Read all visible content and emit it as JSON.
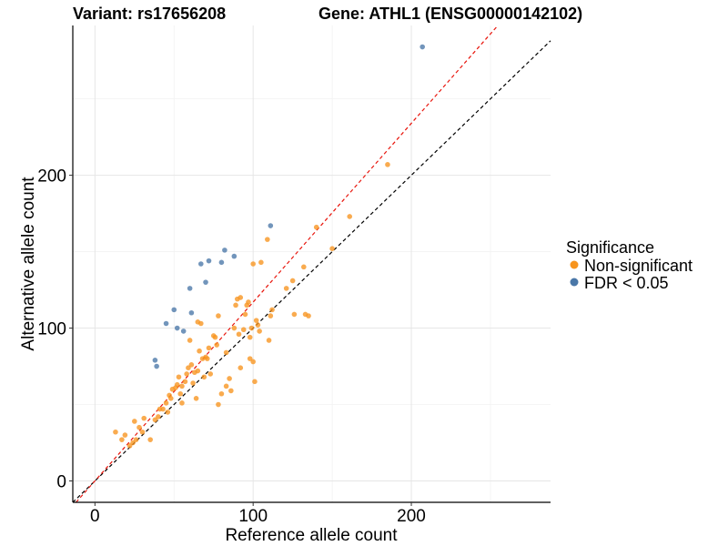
{
  "chart_data": {
    "type": "scatter",
    "title_left": "Variant: rs17656208",
    "title_right": "Gene: ATHL1 (ENSG00000142102)",
    "xlabel": "Reference allele count",
    "ylabel": "Alternative allele count",
    "xlim": [
      -14,
      288
    ],
    "ylim": [
      -14,
      298
    ],
    "x_ticks": [
      0,
      100,
      200
    ],
    "y_ticks": [
      0,
      100,
      200
    ],
    "grid": true,
    "legend": {
      "title": "Significance",
      "position": "right",
      "entries": [
        {
          "label": "Non-significant",
          "color": "#F7941D"
        },
        {
          "label": "FDR < 0.05",
          "color": "#4A77A8"
        }
      ]
    },
    "reference_lines": [
      {
        "name": "identity",
        "slope": 1.0,
        "intercept": 0,
        "color": "#000000",
        "dash": true
      },
      {
        "name": "fit",
        "slope": 1.17,
        "intercept": 0,
        "color": "#E8140B",
        "dash": true
      }
    ],
    "series": [
      {
        "name": "Non-significant",
        "color": "#F7941D",
        "points": [
          [
            13,
            32
          ],
          [
            17,
            27
          ],
          [
            19,
            30
          ],
          [
            22,
            23
          ],
          [
            24,
            25
          ],
          [
            25,
            39
          ],
          [
            26,
            27
          ],
          [
            28,
            35
          ],
          [
            30,
            32
          ],
          [
            31,
            41
          ],
          [
            35,
            27
          ],
          [
            38,
            40
          ],
          [
            40,
            42
          ],
          [
            41,
            47
          ],
          [
            43,
            47
          ],
          [
            45,
            51
          ],
          [
            46,
            45
          ],
          [
            47,
            56
          ],
          [
            48,
            54
          ],
          [
            49,
            60
          ],
          [
            51,
            61
          ],
          [
            52,
            63
          ],
          [
            53,
            68
          ],
          [
            54,
            57
          ],
          [
            55,
            51
          ],
          [
            55,
            62
          ],
          [
            57,
            65
          ],
          [
            58,
            70
          ],
          [
            59,
            74
          ],
          [
            60,
            92
          ],
          [
            61,
            76
          ],
          [
            62,
            64
          ],
          [
            63,
            71
          ],
          [
            64,
            54
          ],
          [
            65,
            104
          ],
          [
            65,
            72
          ],
          [
            66,
            85
          ],
          [
            67,
            103
          ],
          [
            68,
            80
          ],
          [
            69,
            68
          ],
          [
            70,
            81
          ],
          [
            71,
            80
          ],
          [
            72,
            87
          ],
          [
            73,
            70
          ],
          [
            75,
            95
          ],
          [
            76,
            94
          ],
          [
            77,
            89
          ],
          [
            78,
            108
          ],
          [
            78,
            50
          ],
          [
            80,
            57
          ],
          [
            83,
            84
          ],
          [
            83,
            62
          ],
          [
            85,
            67
          ],
          [
            86,
            59
          ],
          [
            88,
            100
          ],
          [
            89,
            115
          ],
          [
            90,
            119
          ],
          [
            91,
            96
          ],
          [
            92,
            120
          ],
          [
            92,
            74
          ],
          [
            94,
            99
          ],
          [
            95,
            109
          ],
          [
            96,
            115
          ],
          [
            97,
            117
          ],
          [
            98,
            80
          ],
          [
            98,
            94
          ],
          [
            99,
            100
          ],
          [
            100,
            142
          ],
          [
            100,
            78
          ],
          [
            101,
            65
          ],
          [
            102,
            105
          ],
          [
            103,
            102
          ],
          [
            104,
            98
          ],
          [
            105,
            143
          ],
          [
            109,
            158
          ],
          [
            110,
            92
          ],
          [
            111,
            108
          ],
          [
            112,
            112
          ],
          [
            121,
            126
          ],
          [
            125,
            131
          ],
          [
            126,
            109
          ],
          [
            132,
            140
          ],
          [
            133,
            109
          ],
          [
            135,
            108
          ],
          [
            140,
            166
          ],
          [
            150,
            152
          ],
          [
            161,
            173
          ],
          [
            185,
            207
          ]
        ]
      },
      {
        "name": "FDR < 0.05",
        "color": "#4A77A8",
        "points": [
          [
            38,
            79
          ],
          [
            39,
            75
          ],
          [
            45,
            103
          ],
          [
            50,
            112
          ],
          [
            52,
            100
          ],
          [
            56,
            98
          ],
          [
            60,
            126
          ],
          [
            61,
            110
          ],
          [
            67,
            142
          ],
          [
            70,
            130
          ],
          [
            72,
            144
          ],
          [
            80,
            143
          ],
          [
            82,
            151
          ],
          [
            88,
            147
          ],
          [
            111,
            167
          ],
          [
            207,
            284
          ]
        ]
      }
    ]
  }
}
